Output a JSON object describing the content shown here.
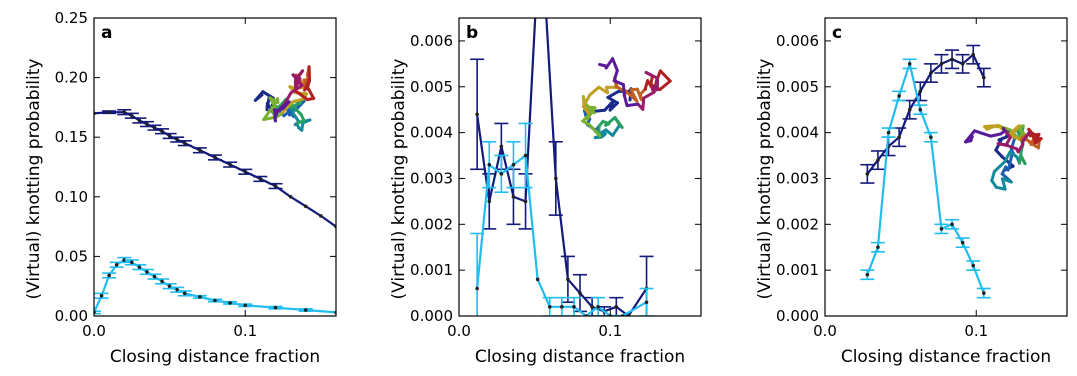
{
  "colors": {
    "dark_series": "#141a7a",
    "light_series": "#22bdf0",
    "axis": "#000000"
  },
  "chart_data": [
    {
      "type": "line",
      "panel_label": "a",
      "xlabel": "Closing distance fraction",
      "ylabel": "(Virtual) knotting probability",
      "xlim": [
        0,
        0.16
      ],
      "ylim": [
        0,
        0.25
      ],
      "xticks": [
        0.0,
        0.1
      ],
      "xtick_labels": [
        "0.0",
        "0.1"
      ],
      "yticks": [
        0,
        0.05,
        0.1,
        0.15,
        0.2,
        0.25
      ],
      "ytick_labels": [
        "0.00",
        "0.05",
        "0.10",
        "0.15",
        "0.20",
        "0.25"
      ],
      "grid": false,
      "legend": "none",
      "inset": "polymer-conformation",
      "series": [
        {
          "color": "dark_series",
          "x": [
            0,
            0.01,
            0.02,
            0.025,
            0.03,
            0.035,
            0.04,
            0.045,
            0.05,
            0.055,
            0.06,
            0.07,
            0.08,
            0.09,
            0.1,
            0.11,
            0.12,
            0.13,
            0.14,
            0.15,
            0.16
          ],
          "y": [
            0.17,
            0.171,
            0.171,
            0.168,
            0.164,
            0.161,
            0.158,
            0.155,
            0.151,
            0.148,
            0.145,
            0.139,
            0.133,
            0.127,
            0.121,
            0.115,
            0.109,
            0.1,
            0.092,
            0.084,
            0.075
          ],
          "err": [
            0,
            0.001,
            0.002,
            0.002,
            0.002,
            0.002,
            0.002,
            0.002,
            0.002,
            0.002,
            0.002,
            0.002,
            0.002,
            0.002,
            0.002,
            0.002,
            0.002,
            0,
            0,
            0,
            0
          ]
        },
        {
          "color": "light_series",
          "x": [
            0,
            0.005,
            0.01,
            0.015,
            0.02,
            0.025,
            0.03,
            0.035,
            0.04,
            0.045,
            0.05,
            0.055,
            0.06,
            0.07,
            0.08,
            0.09,
            0.1,
            0.12,
            0.14,
            0.16
          ],
          "y": [
            0.003,
            0.017,
            0.034,
            0.043,
            0.047,
            0.045,
            0.041,
            0.037,
            0.033,
            0.029,
            0.025,
            0.022,
            0.019,
            0.016,
            0.013,
            0.011,
            0.009,
            0.007,
            0.005,
            0.003
          ],
          "err": [
            0.001,
            0.002,
            0.002,
            0.002,
            0.002,
            0.002,
            0.002,
            0.002,
            0.002,
            0.002,
            0.002,
            0.002,
            0.002,
            0.001,
            0.001,
            0.001,
            0.001,
            0.001,
            0.001,
            0
          ]
        }
      ]
    },
    {
      "type": "line",
      "panel_label": "b",
      "xlabel": "Closing distance fraction",
      "ylabel": "(Virtual) knotting probability",
      "xlim": [
        0,
        0.16
      ],
      "ylim": [
        0,
        0.0065
      ],
      "xticks": [
        0.0,
        0.1
      ],
      "xtick_labels": [
        "0.0",
        "0.1"
      ],
      "yticks": [
        0,
        0.001,
        0.002,
        0.003,
        0.004,
        0.005,
        0.006
      ],
      "ytick_labels": [
        "0.000",
        "0.001",
        "0.002",
        "0.003",
        "0.004",
        "0.005",
        "0.006"
      ],
      "grid": false,
      "legend": "none",
      "inset": "polymer-conformation",
      "series": [
        {
          "color": "dark_series",
          "x": [
            0.012,
            0.02,
            0.028,
            0.036,
            0.044,
            0.052,
            0.056,
            0.064,
            0.072,
            0.08,
            0.088,
            0.096,
            0.104,
            0.112,
            0.124
          ],
          "y": [
            0.0044,
            0.0025,
            0.0037,
            0.0026,
            0.0025,
            0.0075,
            0.0075,
            0.003,
            0.0008,
            0.0005,
            0.0002,
            0.0001,
            0.0002,
            0.0,
            0.0006
          ],
          "err": [
            0.0012,
            0.0006,
            0.0005,
            0.0006,
            0.0006,
            0,
            0,
            0.0008,
            0.0005,
            0.0004,
            0.0002,
            0.0001,
            0.0002,
            0,
            0.0007
          ]
        },
        {
          "color": "light_series",
          "x": [
            0.012,
            0.02,
            0.028,
            0.036,
            0.044,
            0.052,
            0.06,
            0.068,
            0.076,
            0.084,
            0.092,
            0.1,
            0.108,
            0.124
          ],
          "y": [
            0.0006,
            0.0033,
            0.0031,
            0.0033,
            0.0035,
            0.0008,
            0.0002,
            0.0002,
            0.0002,
            0.0,
            0.0002,
            0.0,
            0.0,
            0.0003
          ],
          "err": [
            0.0012,
            0.0005,
            0.0004,
            0.0005,
            0.0007,
            0.0,
            0.0002,
            0.0002,
            0.0002,
            0,
            0.0002,
            0,
            0,
            0.0003
          ]
        }
      ]
    },
    {
      "type": "line",
      "panel_label": "c",
      "xlabel": "Closing distance fraction",
      "ylabel": "(Virtual) knotting probability",
      "xlim": [
        0,
        0.16
      ],
      "ylim": [
        0,
        0.0065
      ],
      "xticks": [
        0.0,
        0.1
      ],
      "xtick_labels": [
        "0.0",
        "0.1"
      ],
      "yticks": [
        0,
        0.001,
        0.002,
        0.003,
        0.004,
        0.005,
        0.006
      ],
      "ytick_labels": [
        "0.000",
        "0.001",
        "0.002",
        "0.003",
        "0.004",
        "0.005",
        "0.006"
      ],
      "grid": false,
      "legend": "none",
      "inset": "polymer-conformation",
      "series": [
        {
          "color": "dark_series",
          "x": [
            0.028,
            0.035,
            0.042,
            0.049,
            0.056,
            0.063,
            0.07,
            0.077,
            0.084,
            0.091,
            0.098,
            0.105
          ],
          "y": [
            0.0031,
            0.0034,
            0.0037,
            0.0039,
            0.0045,
            0.0049,
            0.0053,
            0.0055,
            0.0056,
            0.0055,
            0.0057,
            0.0052
          ],
          "err": [
            0.0002,
            0.0002,
            0.0002,
            0.0002,
            0.0002,
            0.0002,
            0.0002,
            0.0002,
            0.0002,
            0.0002,
            0.0002,
            0.0002
          ]
        },
        {
          "color": "light_series",
          "x": [
            0.028,
            0.035,
            0.042,
            0.049,
            0.056,
            0.063,
            0.07,
            0.077,
            0.084,
            0.091,
            0.098,
            0.105
          ],
          "y": [
            0.0009,
            0.0015,
            0.004,
            0.0048,
            0.0055,
            0.0045,
            0.0039,
            0.0019,
            0.002,
            0.0016,
            0.0011,
            0.0005
          ],
          "err": [
            0.0001,
            0.0001,
            0.0001,
            0.0001,
            0.0001,
            0.0001,
            0.0001,
            0.0001,
            0.0001,
            0.0001,
            0.0001,
            0.0001
          ]
        }
      ]
    }
  ]
}
